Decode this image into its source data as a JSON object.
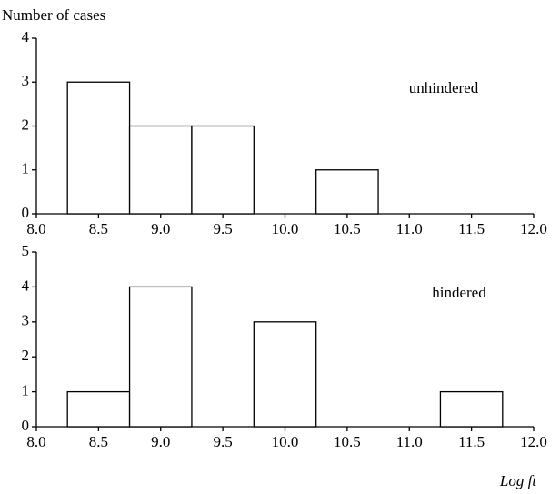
{
  "chart_data": [
    {
      "type": "histogram",
      "ylabel": "Number of cases",
      "annotation": "unhindered",
      "bins": [
        8.25,
        8.75,
        9.25,
        9.75,
        10.25,
        10.75
      ],
      "counts": [
        3,
        2,
        2,
        0,
        1
      ],
      "color": "#ffffff",
      "xlim": [
        8,
        12
      ],
      "xticks": [
        {
          "value": 8,
          "label": "8.0"
        },
        {
          "value": 8.5,
          "label": "8.5"
        },
        {
          "value": 9,
          "label": "9.0"
        },
        {
          "value": 9.5,
          "label": "9.5"
        },
        {
          "value": 10,
          "label": "10.0"
        },
        {
          "value": 10.5,
          "label": "10.5"
        },
        {
          "value": 11,
          "label": "11.0"
        },
        {
          "value": 11.5,
          "label": "11.5"
        },
        {
          "value": 12,
          "label": "12.0"
        }
      ],
      "ylim": [
        0,
        4
      ],
      "yticks": [
        0,
        1,
        2,
        3,
        4
      ]
    },
    {
      "type": "histogram",
      "annotation": "hindered",
      "xlabel": "Log ft",
      "bins": [
        8.25,
        8.75,
        9.25,
        9.75,
        10.25,
        10.75,
        11.25,
        11.75
      ],
      "counts": [
        1,
        4,
        0,
        3,
        0,
        0,
        1
      ],
      "color": "#ffffff",
      "xlim": [
        8,
        12
      ],
      "xticks": [
        {
          "value": 8,
          "label": "8.0"
        },
        {
          "value": 8.5,
          "label": "8.5"
        },
        {
          "value": 9,
          "label": "9.0"
        },
        {
          "value": 9.5,
          "label": "9.5"
        },
        {
          "value": 10,
          "label": "10.0"
        },
        {
          "value": 10.5,
          "label": "10.5"
        },
        {
          "value": 11,
          "label": "11.0"
        },
        {
          "value": 11.5,
          "label": "11.5"
        },
        {
          "value": 12,
          "label": "12.0"
        }
      ],
      "ylim": [
        0,
        5
      ],
      "yticks": [
        0,
        1,
        2,
        3,
        4,
        5
      ]
    }
  ]
}
